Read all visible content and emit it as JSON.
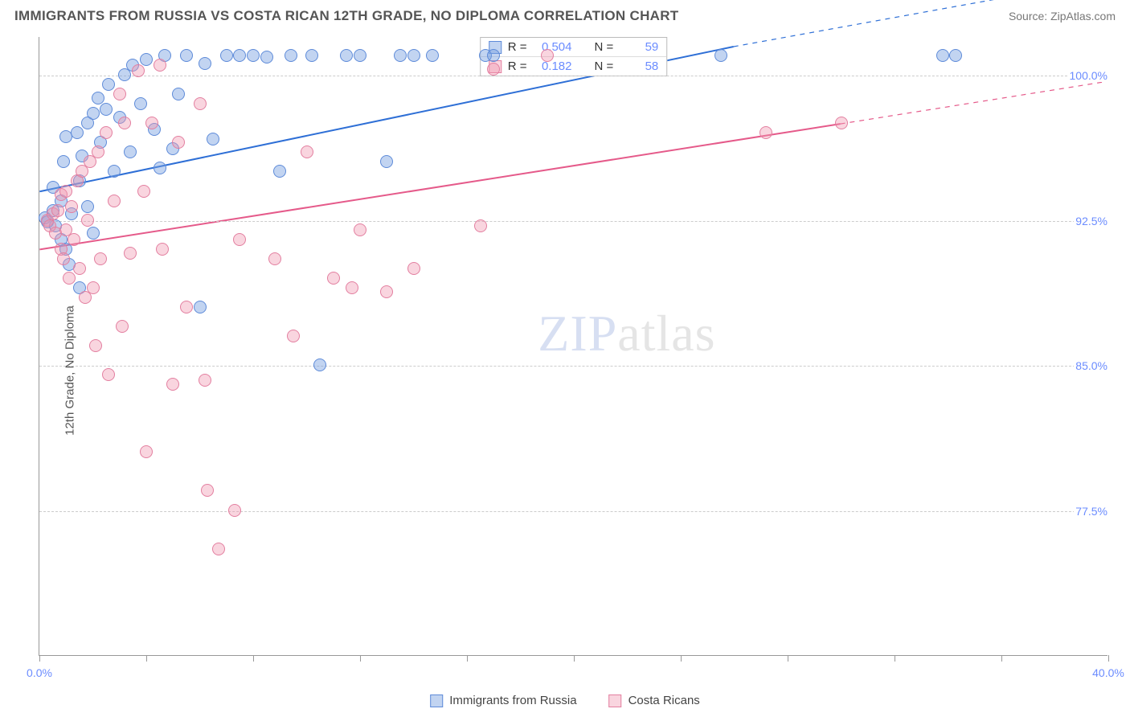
{
  "header": {
    "title": "IMMIGRANTS FROM RUSSIA VS COSTA RICAN 12TH GRADE, NO DIPLOMA CORRELATION CHART",
    "source": "Source: ZipAtlas.com"
  },
  "watermark": {
    "strong": "ZIP",
    "light": "atlas"
  },
  "chart": {
    "type": "scatter",
    "ylabel": "12th Grade, No Diploma",
    "background_color": "#ffffff",
    "grid_color": "#cccccc",
    "axis_color": "#999999",
    "tick_label_color": "#6b8cff",
    "xlim": [
      0,
      40
    ],
    "ylim": [
      70,
      102
    ],
    "xticks": [
      0,
      4,
      8,
      12,
      16,
      20,
      24,
      28,
      32,
      36,
      40
    ],
    "xtick_labels": {
      "0": "0.0%",
      "40": "40.0%"
    },
    "yticks": [
      77.5,
      85.0,
      92.5,
      100.0
    ],
    "ytick_labels": [
      "77.5%",
      "85.0%",
      "92.5%",
      "100.0%"
    ],
    "marker_radius": 8,
    "marker_stroke_width": 1.5,
    "line_width": 2,
    "series": [
      {
        "name": "Immigrants from Russia",
        "color_fill": "rgba(120,160,225,0.45)",
        "color_stroke": "#5e8bd9",
        "line_color": "#2e6fd6",
        "R": "0.504",
        "N": "59",
        "trend": {
          "x1": 0,
          "y1": 94.0,
          "x2": 26,
          "y2": 101.5,
          "dashed_from_x": 26,
          "dashed_to_x": 40,
          "dashed_to_y": 105.0
        },
        "points": [
          [
            0.2,
            92.6
          ],
          [
            0.3,
            92.4
          ],
          [
            0.5,
            93.0
          ],
          [
            0.5,
            94.2
          ],
          [
            0.6,
            92.2
          ],
          [
            0.8,
            91.5
          ],
          [
            0.8,
            93.5
          ],
          [
            0.9,
            95.5
          ],
          [
            1.0,
            91.0
          ],
          [
            1.0,
            96.8
          ],
          [
            1.1,
            90.2
          ],
          [
            1.2,
            92.8
          ],
          [
            1.4,
            97.0
          ],
          [
            1.5,
            94.5
          ],
          [
            1.5,
            89.0
          ],
          [
            1.6,
            95.8
          ],
          [
            1.8,
            97.5
          ],
          [
            1.8,
            93.2
          ],
          [
            2.0,
            98.0
          ],
          [
            2.0,
            91.8
          ],
          [
            2.2,
            98.8
          ],
          [
            2.3,
            96.5
          ],
          [
            2.5,
            98.2
          ],
          [
            2.6,
            99.5
          ],
          [
            2.8,
            95.0
          ],
          [
            3.0,
            97.8
          ],
          [
            3.2,
            100.0
          ],
          [
            3.4,
            96.0
          ],
          [
            3.5,
            100.5
          ],
          [
            3.8,
            98.5
          ],
          [
            4.0,
            100.8
          ],
          [
            4.3,
            97.2
          ],
          [
            4.5,
            95.2
          ],
          [
            4.7,
            101.0
          ],
          [
            5.0,
            96.2
          ],
          [
            5.2,
            99.0
          ],
          [
            5.5,
            101.0
          ],
          [
            6.0,
            88.0
          ],
          [
            6.2,
            100.6
          ],
          [
            6.5,
            96.7
          ],
          [
            7.0,
            101.0
          ],
          [
            7.5,
            101.0
          ],
          [
            8.0,
            101.0
          ],
          [
            8.5,
            100.9
          ],
          [
            9.0,
            95.0
          ],
          [
            9.4,
            101.0
          ],
          [
            10.2,
            101.0
          ],
          [
            10.5,
            85.0
          ],
          [
            11.5,
            101.0
          ],
          [
            12.0,
            101.0
          ],
          [
            13.0,
            95.5
          ],
          [
            13.5,
            101.0
          ],
          [
            14.0,
            101.0
          ],
          [
            14.7,
            101.0
          ],
          [
            16.7,
            101.0
          ],
          [
            17.0,
            101.0
          ],
          [
            25.5,
            101.0
          ],
          [
            33.8,
            101.0
          ],
          [
            34.3,
            101.0
          ]
        ]
      },
      {
        "name": "Costa Ricans",
        "color_fill": "rgba(240,150,175,0.40)",
        "color_stroke": "#e37fa0",
        "line_color": "#e55a8a",
        "R": "0.182",
        "N": "58",
        "trend": {
          "x1": 0,
          "y1": 91.0,
          "x2": 30,
          "y2": 97.5,
          "dashed_from_x": 30,
          "dashed_to_x": 40,
          "dashed_to_y": 99.7
        },
        "points": [
          [
            0.3,
            92.5
          ],
          [
            0.4,
            92.2
          ],
          [
            0.5,
            92.8
          ],
          [
            0.6,
            91.8
          ],
          [
            0.7,
            93.0
          ],
          [
            0.8,
            91.0
          ],
          [
            0.8,
            93.8
          ],
          [
            0.9,
            90.5
          ],
          [
            1.0,
            92.0
          ],
          [
            1.0,
            94.0
          ],
          [
            1.1,
            89.5
          ],
          [
            1.2,
            93.2
          ],
          [
            1.3,
            91.5
          ],
          [
            1.4,
            94.5
          ],
          [
            1.5,
            90.0
          ],
          [
            1.6,
            95.0
          ],
          [
            1.7,
            88.5
          ],
          [
            1.8,
            92.5
          ],
          [
            1.9,
            95.5
          ],
          [
            2.0,
            89.0
          ],
          [
            2.1,
            86.0
          ],
          [
            2.2,
            96.0
          ],
          [
            2.3,
            90.5
          ],
          [
            2.5,
            97.0
          ],
          [
            2.6,
            84.5
          ],
          [
            2.8,
            93.5
          ],
          [
            3.0,
            99.0
          ],
          [
            3.1,
            87.0
          ],
          [
            3.2,
            97.5
          ],
          [
            3.4,
            90.8
          ],
          [
            3.7,
            100.2
          ],
          [
            3.9,
            94.0
          ],
          [
            4.0,
            80.5
          ],
          [
            4.2,
            97.5
          ],
          [
            4.5,
            100.5
          ],
          [
            4.6,
            91.0
          ],
          [
            5.0,
            84.0
          ],
          [
            5.2,
            96.5
          ],
          [
            5.5,
            88.0
          ],
          [
            6.0,
            98.5
          ],
          [
            6.2,
            84.2
          ],
          [
            6.3,
            78.5
          ],
          [
            6.7,
            75.5
          ],
          [
            7.3,
            77.5
          ],
          [
            7.5,
            91.5
          ],
          [
            8.8,
            90.5
          ],
          [
            9.5,
            86.5
          ],
          [
            10.0,
            96.0
          ],
          [
            11.0,
            89.5
          ],
          [
            11.7,
            89.0
          ],
          [
            12.0,
            92.0
          ],
          [
            13.0,
            88.8
          ],
          [
            14.0,
            90.0
          ],
          [
            16.5,
            92.2
          ],
          [
            17.0,
            100.3
          ],
          [
            19.0,
            101.0
          ],
          [
            27.2,
            97.0
          ],
          [
            30.0,
            97.5
          ]
        ]
      }
    ]
  },
  "stats_legend": {
    "r_label": "R =",
    "n_label": "N ="
  },
  "bottom_legend_labels": [
    "Immigrants from Russia",
    "Costa Ricans"
  ]
}
